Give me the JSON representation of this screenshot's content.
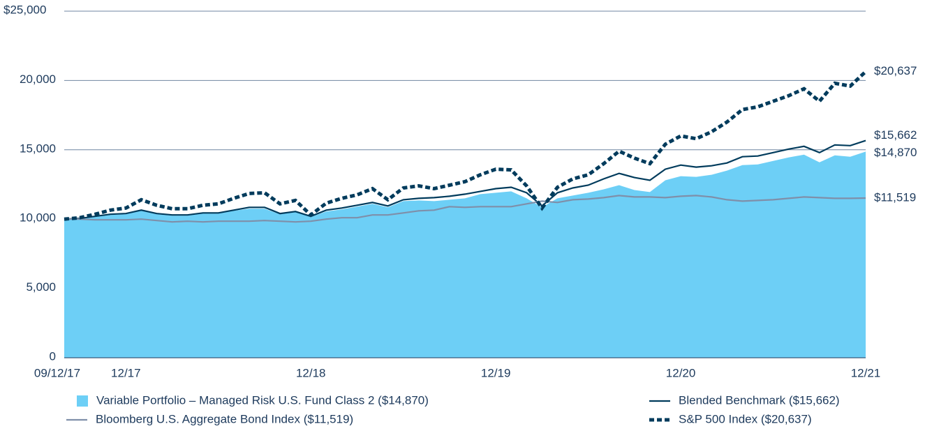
{
  "chart_data": {
    "type": "line",
    "categories": [
      "09/12/17",
      null,
      null,
      null,
      "12/17",
      null,
      null,
      null,
      null,
      null,
      null,
      null,
      null,
      null,
      null,
      null,
      "12/18",
      null,
      null,
      null,
      null,
      null,
      null,
      null,
      null,
      null,
      null,
      null,
      "12/19",
      null,
      null,
      null,
      null,
      null,
      null,
      null,
      null,
      null,
      null,
      null,
      "12/20",
      null,
      null,
      null,
      null,
      null,
      null,
      null,
      null,
      null,
      null,
      null,
      "12/21"
    ],
    "ylim": [
      0,
      25000
    ],
    "yticks": [
      0,
      {
        "value": 5000,
        "label": "5,000"
      },
      {
        "value": 10000,
        "label": "10,000"
      },
      {
        "value": 15000,
        "label": "15,000"
      },
      {
        "value": 20000,
        "label": "20,000"
      },
      {
        "value": 25000,
        "label": "$25,000"
      }
    ],
    "grid": true,
    "series": [
      {
        "name": "Variable Portfolio – Managed Risk U.S. Fund Class 2 ($14,870)",
        "color": "#6dcff6",
        "style": "area",
        "values": [
          10000,
          10000,
          10150,
          10300,
          10350,
          10600,
          10350,
          10250,
          10250,
          10400,
          10400,
          10600,
          10750,
          10750,
          10350,
          10500,
          10150,
          10550,
          10700,
          10900,
          11100,
          10850,
          11300,
          11350,
          11300,
          11400,
          11500,
          11800,
          11900,
          12000,
          11500,
          10850,
          11500,
          11700,
          11900,
          12150,
          12450,
          12100,
          11950,
          12800,
          13100,
          13050,
          13200,
          13500,
          13900,
          13950,
          14200,
          14450,
          14650,
          14100,
          14600,
          14500,
          14870
        ],
        "value_labels": [
          null,
          null,
          null,
          null,
          null,
          null,
          null,
          null,
          null,
          null,
          null,
          null,
          null,
          null,
          null,
          null,
          null,
          null,
          null,
          null,
          null,
          null,
          null,
          null,
          null,
          null,
          null,
          null,
          null,
          null,
          null,
          null,
          null,
          null,
          null,
          null,
          null,
          null,
          null,
          null,
          null,
          null,
          null,
          null,
          null,
          null,
          null,
          null,
          null,
          null,
          null,
          null,
          "$14,870"
        ]
      },
      {
        "name": "Blended Benchmark ($15,662)",
        "color": "#003b5c",
        "style": "line",
        "values": [
          10000,
          10050,
          10200,
          10350,
          10400,
          10650,
          10400,
          10300,
          10300,
          10450,
          10450,
          10650,
          10850,
          10850,
          10400,
          10550,
          10200,
          10650,
          10800,
          11000,
          11200,
          10950,
          11400,
          11500,
          11550,
          11650,
          11800,
          12000,
          12200,
          12300,
          11900,
          10950,
          11900,
          12250,
          12450,
          12900,
          13300,
          13000,
          12800,
          13600,
          13900,
          13750,
          13850,
          14050,
          14500,
          14550,
          14800,
          15050,
          15250,
          14800,
          15350,
          15300,
          15662
        ],
        "value_labels": [
          null,
          null,
          null,
          null,
          null,
          null,
          null,
          null,
          null,
          null,
          null,
          null,
          null,
          null,
          null,
          null,
          null,
          null,
          null,
          null,
          null,
          null,
          null,
          null,
          null,
          null,
          null,
          null,
          null,
          null,
          null,
          null,
          null,
          null,
          null,
          null,
          null,
          null,
          null,
          null,
          null,
          null,
          null,
          null,
          null,
          null,
          null,
          null,
          null,
          null,
          null,
          null,
          "$15,662"
        ]
      },
      {
        "name": "Bloomberg U.S. Aggregate Bond Index ($11,519)",
        "color": "#7f8fa9",
        "style": "line",
        "values": [
          10000,
          10000,
          9950,
          9950,
          9950,
          10000,
          9900,
          9800,
          9850,
          9800,
          9850,
          9850,
          9850,
          9900,
          9850,
          9800,
          9850,
          10000,
          10100,
          10100,
          10300,
          10300,
          10450,
          10600,
          10650,
          10900,
          10850,
          10900,
          10900,
          10900,
          11100,
          11300,
          11200,
          11400,
          11450,
          11550,
          11700,
          11600,
          11600,
          11550,
          11650,
          11700,
          11600,
          11400,
          11300,
          11350,
          11400,
          11500,
          11600,
          11550,
          11500,
          11500,
          11519
        ],
        "value_labels": [
          null,
          null,
          null,
          null,
          null,
          null,
          null,
          null,
          null,
          null,
          null,
          null,
          null,
          null,
          null,
          null,
          null,
          null,
          null,
          null,
          null,
          null,
          null,
          null,
          null,
          null,
          null,
          null,
          null,
          null,
          null,
          null,
          null,
          null,
          null,
          null,
          null,
          null,
          null,
          null,
          null,
          null,
          null,
          null,
          null,
          null,
          null,
          null,
          null,
          null,
          null,
          null,
          "$11,519"
        ]
      },
      {
        "name": "S&P 500 Index ($20,637)",
        "color": "#003b5c",
        "style": "dashed",
        "values": [
          10000,
          10100,
          10350,
          10650,
          10800,
          11400,
          11000,
          10750,
          10750,
          11000,
          11100,
          11500,
          11850,
          11900,
          11100,
          11350,
          10300,
          11150,
          11500,
          11750,
          12200,
          11400,
          12250,
          12400,
          12200,
          12450,
          12700,
          13200,
          13600,
          13550,
          12400,
          10800,
          12300,
          12900,
          13200,
          14000,
          14900,
          14400,
          14000,
          15400,
          16000,
          15800,
          16300,
          17000,
          17900,
          18100,
          18500,
          18900,
          19400,
          18500,
          19800,
          19600,
          20637
        ],
        "value_labels": [
          null,
          null,
          null,
          null,
          null,
          null,
          null,
          null,
          null,
          null,
          null,
          null,
          null,
          null,
          null,
          null,
          null,
          null,
          null,
          null,
          null,
          null,
          null,
          null,
          null,
          null,
          null,
          null,
          null,
          null,
          null,
          null,
          null,
          null,
          null,
          null,
          null,
          null,
          null,
          null,
          null,
          null,
          null,
          null,
          null,
          null,
          null,
          null,
          null,
          null,
          null,
          null,
          "$20,637"
        ]
      }
    ]
  }
}
